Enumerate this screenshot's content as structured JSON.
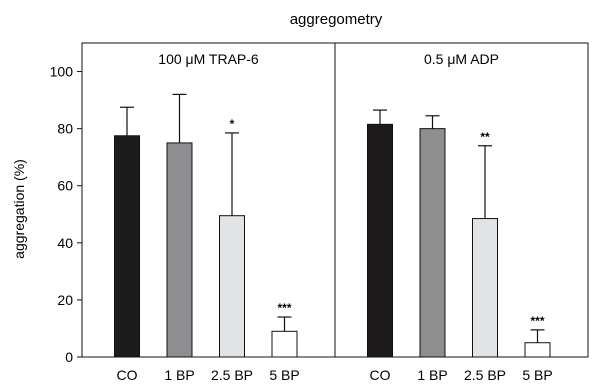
{
  "chart_data": {
    "type": "bar",
    "title": "aggregometry",
    "ylabel": "aggregation (%)",
    "ylim": [
      0,
      110
    ],
    "yticks": [
      0,
      20,
      40,
      60,
      80,
      100
    ],
    "categories": [
      "CO",
      "1 BP",
      "2.5 BP",
      "5 BP"
    ],
    "bar_colors": [
      "#1e1b1c",
      "#8e8e90",
      "#e2e3e4",
      "#ffffff"
    ],
    "panels": [
      {
        "title": "100 μM TRAP-6",
        "values": [
          77.5,
          75,
          49.5,
          9
        ],
        "error_upper": [
          87.5,
          92,
          78.5,
          14
        ],
        "significance": [
          "",
          "",
          "*",
          "***"
        ]
      },
      {
        "title": "0.5 μM ADP",
        "values": [
          81.5,
          80,
          48.5,
          5
        ],
        "error_upper": [
          86.5,
          84.5,
          74,
          9.5
        ],
        "significance": [
          "",
          "",
          "**",
          "***"
        ]
      }
    ]
  }
}
